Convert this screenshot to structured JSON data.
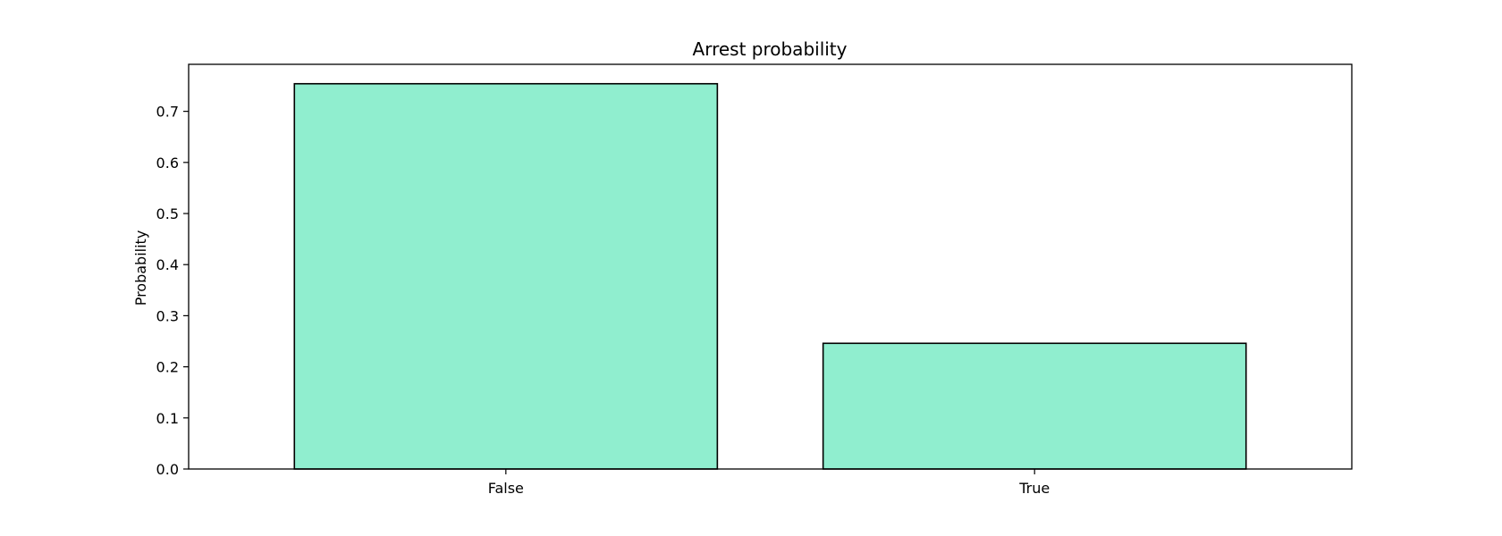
{
  "chart_data": {
    "type": "bar",
    "title": "Arrest probability",
    "xlabel": "",
    "ylabel": "Probability",
    "categories": [
      "False",
      "True"
    ],
    "values": [
      0.754,
      0.246
    ],
    "ylim": [
      0,
      0.792
    ],
    "yticks": [
      0.0,
      0.1,
      0.2,
      0.3,
      0.4,
      0.5,
      0.6,
      0.7
    ],
    "ytick_labels": [
      "0.0",
      "0.1",
      "0.2",
      "0.3",
      "0.4",
      "0.5",
      "0.6",
      "0.7"
    ],
    "grid": false,
    "bar_color": "#90eecf",
    "edge_color": "#000000"
  }
}
